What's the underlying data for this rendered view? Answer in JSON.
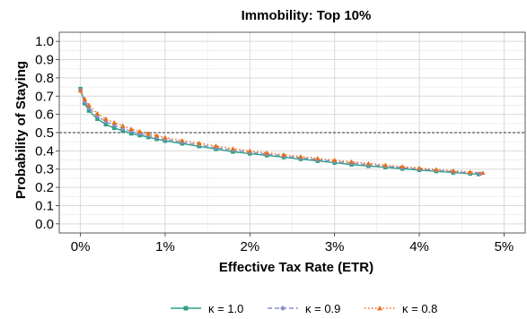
{
  "chart_data": {
    "type": "line",
    "title": "Immobility: Top 10%",
    "xlabel": "Effective Tax Rate (ETR)",
    "ylabel": "Probability of Staying",
    "xlim": [
      -0.25,
      5.25
    ],
    "ylim": [
      -0.05,
      1.05
    ],
    "x_ticks": [
      0,
      1,
      2,
      3,
      4,
      5
    ],
    "x_tick_labels": [
      "0%",
      "1%",
      "2%",
      "3%",
      "4%",
      "5%"
    ],
    "y_ticks": [
      0.0,
      0.1,
      0.2,
      0.3,
      0.4,
      0.5,
      0.6,
      0.7,
      0.8,
      0.9,
      1.0
    ],
    "y_tick_labels": [
      "0.0",
      "0.1",
      "0.2",
      "0.3",
      "0.4",
      "0.5",
      "0.6",
      "0.7",
      "0.8",
      "0.9",
      "1.0"
    ],
    "reference_line": {
      "y": 0.5,
      "style": "dashed",
      "color": "#333333"
    },
    "grid": true,
    "legend_position": "bottom",
    "series": [
      {
        "name": "κ = 1.0",
        "color": "#2e9e86",
        "line_style": "solid",
        "marker": "square",
        "x": [
          0,
          0.05,
          0.1,
          0.2,
          0.3,
          0.4,
          0.5,
          0.6,
          0.7,
          0.8,
          0.9,
          1.0,
          1.2,
          1.4,
          1.6,
          1.8,
          2.0,
          2.2,
          2.4,
          2.6,
          2.8,
          3.0,
          3.2,
          3.4,
          3.6,
          3.8,
          4.0,
          4.2,
          4.4,
          4.6,
          4.7
        ],
        "y": [
          0.74,
          0.66,
          0.62,
          0.575,
          0.545,
          0.525,
          0.51,
          0.495,
          0.485,
          0.475,
          0.465,
          0.455,
          0.44,
          0.425,
          0.41,
          0.395,
          0.385,
          0.375,
          0.365,
          0.355,
          0.345,
          0.335,
          0.325,
          0.317,
          0.31,
          0.302,
          0.295,
          0.288,
          0.281,
          0.275,
          0.272
        ]
      },
      {
        "name": "κ = 0.9",
        "color": "#8b8fc8",
        "line_style": "dashed",
        "marker": "circle",
        "x": [
          0,
          0.05,
          0.1,
          0.2,
          0.3,
          0.4,
          0.5,
          0.6,
          0.7,
          0.8,
          0.9,
          1.0,
          1.2,
          1.4,
          1.6,
          1.8,
          2.0,
          2.2,
          2.4,
          2.6,
          2.8,
          3.0,
          3.2,
          3.4,
          3.6,
          3.8,
          4.0,
          4.2,
          4.4,
          4.6,
          4.72
        ],
        "y": [
          0.735,
          0.67,
          0.635,
          0.59,
          0.56,
          0.54,
          0.522,
          0.507,
          0.495,
          0.484,
          0.474,
          0.464,
          0.448,
          0.433,
          0.418,
          0.404,
          0.393,
          0.382,
          0.372,
          0.362,
          0.352,
          0.342,
          0.333,
          0.324,
          0.316,
          0.308,
          0.3,
          0.293,
          0.286,
          0.279,
          0.275
        ]
      },
      {
        "name": "κ = 0.8",
        "color": "#e86f1c",
        "line_style": "dotted",
        "marker": "triangle",
        "x": [
          0,
          0.05,
          0.1,
          0.2,
          0.3,
          0.4,
          0.5,
          0.6,
          0.7,
          0.8,
          0.9,
          1.0,
          1.2,
          1.4,
          1.6,
          1.8,
          2.0,
          2.2,
          2.4,
          2.6,
          2.8,
          3.0,
          3.2,
          3.4,
          3.6,
          3.8,
          4.0,
          4.2,
          4.4,
          4.6,
          4.75
        ],
        "y": [
          0.73,
          0.685,
          0.65,
          0.605,
          0.575,
          0.555,
          0.537,
          0.52,
          0.507,
          0.495,
          0.484,
          0.474,
          0.457,
          0.442,
          0.427,
          0.412,
          0.4,
          0.389,
          0.379,
          0.369,
          0.359,
          0.349,
          0.34,
          0.331,
          0.322,
          0.314,
          0.306,
          0.298,
          0.291,
          0.284,
          0.279
        ]
      }
    ]
  }
}
